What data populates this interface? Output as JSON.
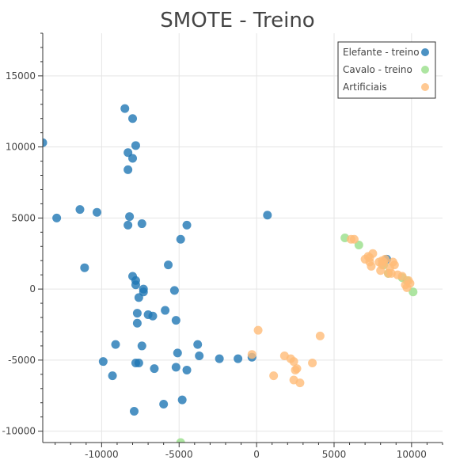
{
  "chart_data": {
    "type": "scatter",
    "title": "SMOTE - Treino",
    "xlabel": "",
    "ylabel": "",
    "xlim": [
      -13800,
      12000
    ],
    "ylim": [
      -10800,
      18000
    ],
    "xticks": [
      -10000,
      -5000,
      0,
      5000,
      10000
    ],
    "yticks": [
      -10000,
      -5000,
      0,
      5000,
      10000,
      15000
    ],
    "grid": true,
    "legend": "top-right",
    "series": [
      {
        "name": "Elefante - treino",
        "color": "#1f77b4",
        "points": [
          [
            -13800,
            10300
          ],
          [
            -12900,
            5000
          ],
          [
            -11400,
            5600
          ],
          [
            -11100,
            1500
          ],
          [
            -10300,
            5400
          ],
          [
            -9900,
            -5100
          ],
          [
            -9300,
            -6100
          ],
          [
            -9100,
            -3900
          ],
          [
            -8500,
            12700
          ],
          [
            -8300,
            9600
          ],
          [
            -8300,
            8400
          ],
          [
            -8300,
            4500
          ],
          [
            -8200,
            5100
          ],
          [
            -8000,
            12000
          ],
          [
            -8000,
            9200
          ],
          [
            -8000,
            900
          ],
          [
            -7800,
            10100
          ],
          [
            -7800,
            600
          ],
          [
            -7800,
            300
          ],
          [
            -7800,
            -5200
          ],
          [
            -7900,
            -8600
          ],
          [
            -7600,
            -5200
          ],
          [
            -7700,
            -1700
          ],
          [
            -7700,
            -2400
          ],
          [
            -7600,
            -600
          ],
          [
            -7400,
            4600
          ],
          [
            -7300,
            0
          ],
          [
            -7300,
            -200
          ],
          [
            -7400,
            -4000
          ],
          [
            -7000,
            -1800
          ],
          [
            -6700,
            -1900
          ],
          [
            -6600,
            -5600
          ],
          [
            -6000,
            -8100
          ],
          [
            -5900,
            -1500
          ],
          [
            -5700,
            1700
          ],
          [
            -5300,
            -100
          ],
          [
            -5200,
            -2200
          ],
          [
            -5200,
            -5500
          ],
          [
            -5100,
            -4500
          ],
          [
            -4900,
            3500
          ],
          [
            -4800,
            -7800
          ],
          [
            -4500,
            4500
          ],
          [
            -4500,
            -5700
          ],
          [
            -3800,
            -3900
          ],
          [
            -3700,
            -4700
          ],
          [
            -2400,
            -4900
          ],
          [
            -1200,
            -4900
          ],
          [
            -300,
            -4800
          ],
          [
            700,
            5200
          ],
          [
            8400,
            2100
          ]
        ]
      },
      {
        "name": "Cavalo - treino",
        "color": "#98df8a",
        "points": [
          [
            -4900,
            -10800
          ],
          [
            5700,
            3600
          ],
          [
            6600,
            3100
          ],
          [
            8500,
            1100
          ],
          [
            9400,
            800
          ],
          [
            10100,
            -200
          ],
          [
            9700,
            600
          ],
          [
            8200,
            1700
          ]
        ]
      },
      {
        "name": "Artificiais",
        "color": "#ffbb78",
        "points": [
          [
            -300,
            -4600
          ],
          [
            100,
            -2900
          ],
          [
            1100,
            -6100
          ],
          [
            1800,
            -4700
          ],
          [
            2200,
            -4900
          ],
          [
            2400,
            -5100
          ],
          [
            2400,
            -6400
          ],
          [
            2500,
            -5700
          ],
          [
            2600,
            -5600
          ],
          [
            2800,
            -6600
          ],
          [
            3600,
            -5200
          ],
          [
            4100,
            -3300
          ],
          [
            6100,
            3500
          ],
          [
            6300,
            3500
          ],
          [
            7000,
            2100
          ],
          [
            7200,
            2300
          ],
          [
            7300,
            1900
          ],
          [
            7400,
            1600
          ],
          [
            7500,
            2500
          ],
          [
            7300,
            2200
          ],
          [
            8000,
            1300
          ],
          [
            8100,
            2000
          ],
          [
            8200,
            1900
          ],
          [
            8300,
            2100
          ],
          [
            8500,
            1100
          ],
          [
            8600,
            1500
          ],
          [
            8700,
            1100
          ],
          [
            8800,
            1900
          ],
          [
            8900,
            1700
          ],
          [
            9100,
            1000
          ],
          [
            9400,
            900
          ],
          [
            9600,
            300
          ],
          [
            9700,
            100
          ],
          [
            9800,
            600
          ],
          [
            9900,
            400
          ],
          [
            7900,
            1900
          ],
          [
            8100,
            1700
          ]
        ]
      }
    ]
  }
}
